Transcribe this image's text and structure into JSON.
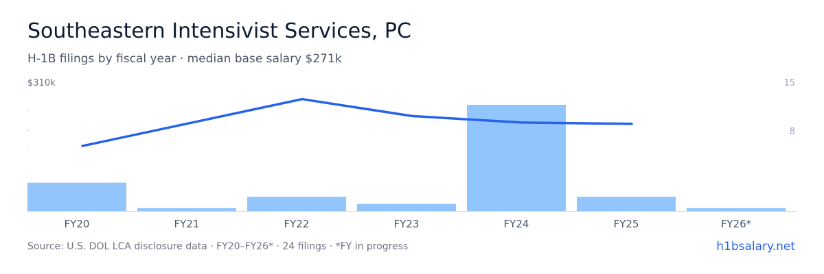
{
  "header": {
    "title": "Southeastern Intensivist Services, PC",
    "subtitle": "H-1B filings by fiscal year · median base salary $271k"
  },
  "footer": {
    "source": "Source: U.S. DOL LCA disclosure data · FY20–FY26* · 24 filings · *FY in progress",
    "brand": "h1bsalary.net"
  },
  "colors": {
    "bar": "#93c5fd",
    "line": "#2563eb",
    "axis": "#d1d5db"
  },
  "chart_data": {
    "type": "bar",
    "categories": [
      "FY20",
      "FY21",
      "FY22",
      "FY23",
      "FY24",
      "FY25",
      "FY26*"
    ],
    "series": [
      {
        "type": "bar",
        "axis": "right",
        "values": [
          4,
          0.4,
          2,
          1,
          15,
          2,
          0.4
        ]
      },
      {
        "type": "line",
        "axis": "left",
        "values": [
          261,
          279,
          297,
          284,
          279,
          278,
          null
        ]
      }
    ],
    "left_axis": {
      "top_label": "$310k",
      "max": 310
    },
    "right_axis": {
      "ticks": [
        {
          "value": 15,
          "label": "15"
        },
        {
          "value": 8,
          "label": "8"
        }
      ],
      "max": 15
    }
  }
}
